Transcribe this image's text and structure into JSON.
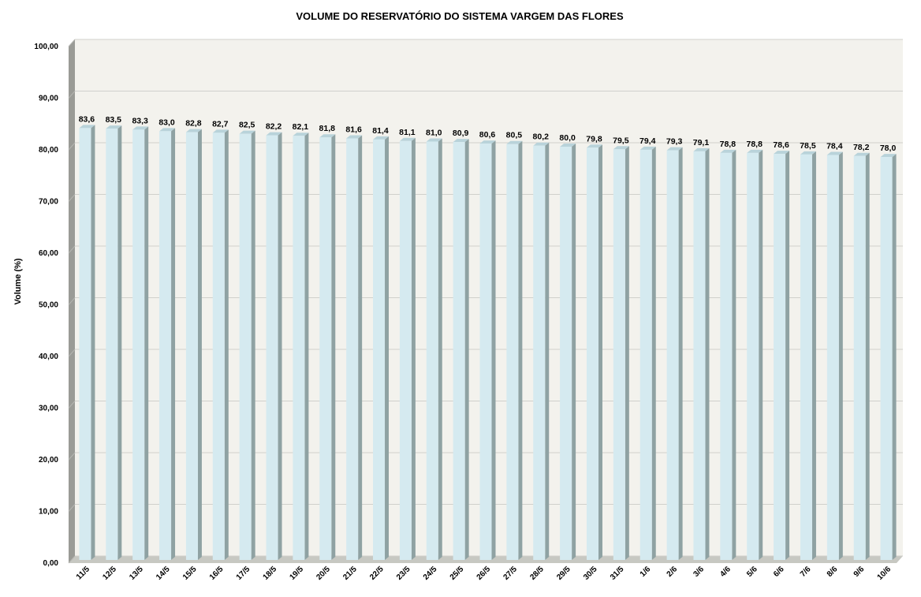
{
  "chart_data": {
    "type": "bar",
    "title": "VOLUME DO RESERVATÓRIO DO SISTEMA VARGEM DAS FLORES",
    "xlabel": "",
    "ylabel": "Volume (%)",
    "ylim": [
      0,
      100
    ],
    "yticks": [
      "0,00",
      "10,00",
      "20,00",
      "30,00",
      "40,00",
      "50,00",
      "60,00",
      "70,00",
      "80,00",
      "90,00",
      "100,00"
    ],
    "grid": true,
    "legend": "none",
    "categories": [
      "11/5",
      "12/5",
      "13/5",
      "14/5",
      "15/5",
      "16/5",
      "17/5",
      "18/5",
      "19/5",
      "20/5",
      "21/5",
      "22/5",
      "23/5",
      "24/5",
      "25/5",
      "26/5",
      "27/5",
      "28/5",
      "29/5",
      "30/5",
      "31/5",
      "1/6",
      "2/6",
      "3/6",
      "4/6",
      "5/6",
      "6/6",
      "7/6",
      "8/6",
      "9/6",
      "10/6"
    ],
    "values": [
      83.6,
      83.5,
      83.3,
      83.0,
      82.8,
      82.7,
      82.5,
      82.2,
      82.1,
      81.8,
      81.6,
      81.4,
      81.1,
      81.0,
      80.9,
      80.6,
      80.5,
      80.2,
      80.0,
      79.8,
      79.5,
      79.4,
      79.3,
      79.1,
      78.8,
      78.8,
      78.6,
      78.5,
      78.4,
      78.2,
      78.0
    ],
    "data_labels": [
      "83,6",
      "83,5",
      "83,3",
      "83,0",
      "82,8",
      "82,7",
      "82,5",
      "82,2",
      "82,1",
      "81,8",
      "81,6",
      "81,4",
      "81,1",
      "81,0",
      "80,9",
      "80,6",
      "80,5",
      "80,2",
      "80,0",
      "79,8",
      "79,5",
      "79,4",
      "79,3",
      "79,1",
      "78,8",
      "78,8",
      "78,6",
      "78,5",
      "78,4",
      "78,2",
      "78,0"
    ],
    "colors": {
      "bar_front": "#d5eaf0",
      "bar_side": "#8fa2a3",
      "bar_top": "#b9d3da",
      "plot_background": "#f3f2ed",
      "wall_side": "#9a9b96",
      "floor": "#c7c8c2",
      "gridline": "#d0d0cc"
    }
  }
}
